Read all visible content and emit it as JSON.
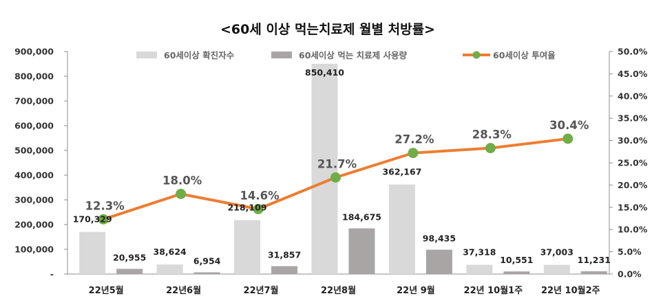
{
  "chart_data": {
    "type": "bar",
    "title": "<60세 이상 먹는치료제 월별 처방률>",
    "categories": [
      "22년5월",
      "22년6월",
      "22년7월",
      "22년8월",
      "22년 9월",
      "22년 10월1주",
      "22년 10월2주"
    ],
    "series": [
      {
        "name": "60세이상 확진자수",
        "kind": "bar",
        "axis": "left",
        "color": "#d9d9d9",
        "values": [
          170329,
          38624,
          218109,
          850410,
          362167,
          37318,
          37003
        ],
        "labels": [
          "170,329",
          "38,624",
          "218,109",
          "850,410",
          "362,167",
          "37,318",
          "37,003"
        ]
      },
      {
        "name": "60세이상 먹는 치료제 사용량",
        "kind": "bar",
        "axis": "left",
        "color": "#aaa5a5",
        "values": [
          20955,
          6954,
          31857,
          184675,
          98435,
          10551,
          11231
        ],
        "labels": [
          "20,955",
          "6,954",
          "31,857",
          "184,675",
          "98,435",
          "10,551",
          "11,231"
        ]
      },
      {
        "name": "60세이상 투여율",
        "kind": "line",
        "axis": "right",
        "color": "#ed7d31",
        "marker_color": "#70ad47",
        "values": [
          12.3,
          18.0,
          14.6,
          21.7,
          27.2,
          28.3,
          30.4
        ],
        "labels": [
          "12.3%",
          "18.0%",
          "14.6%",
          "21.7%",
          "27.2%",
          "28.3%",
          "30.4%"
        ]
      }
    ],
    "y_left": {
      "ylim": [
        0,
        900000
      ],
      "ticks": [
        "-",
        "100,000",
        "200,000",
        "300,000",
        "400,000",
        "500,000",
        "600,000",
        "700,000",
        "800,000",
        "900,000"
      ]
    },
    "y_right": {
      "ylim": [
        0,
        50
      ],
      "ticks": [
        "0.0%",
        "5.0%",
        "10.0%",
        "15.0%",
        "20.0%",
        "25.0%",
        "30.0%",
        "35.0%",
        "40.0%",
        "45.0%",
        "50.0%"
      ]
    },
    "legend_position": "top",
    "grid": false
  }
}
